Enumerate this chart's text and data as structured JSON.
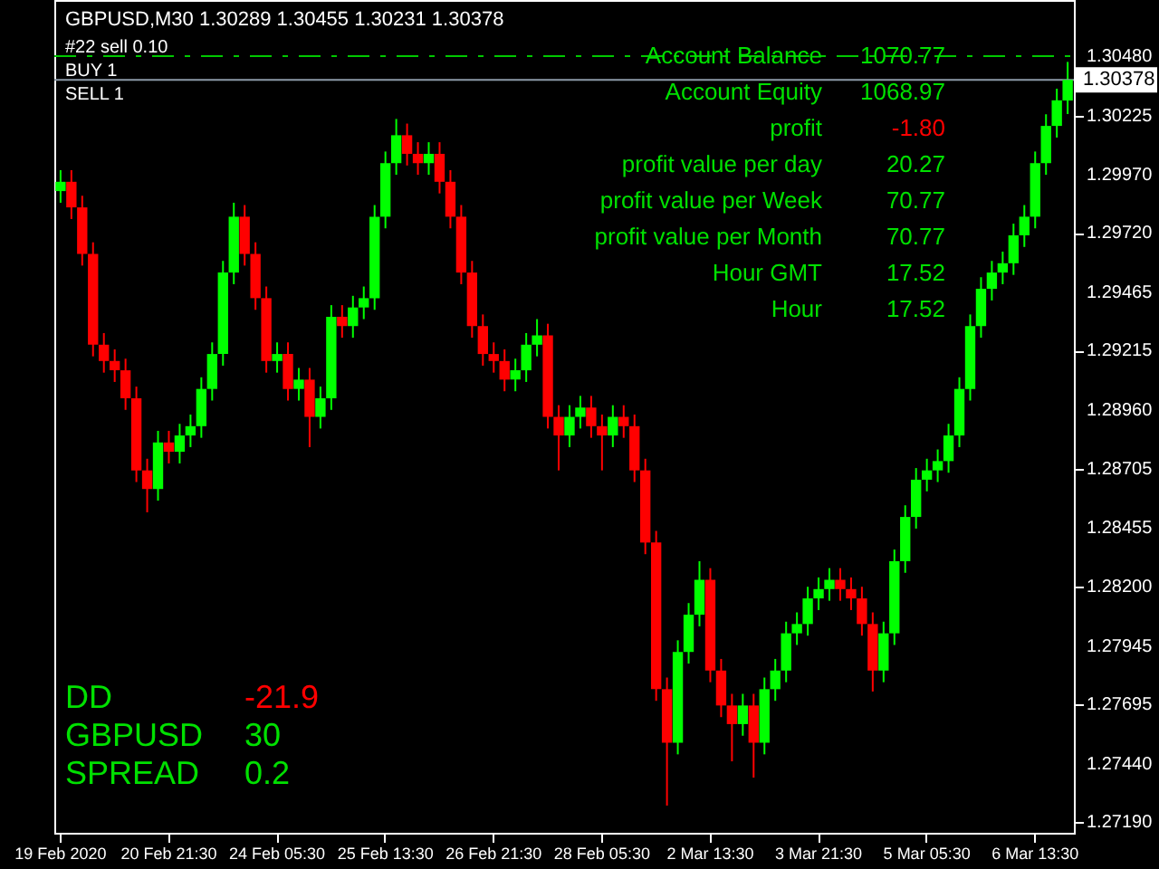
{
  "chart_data": {
    "type": "candlestick",
    "title": "GBPUSD,M30  1.30289 1.30455 1.30231 1.30378",
    "categories": [
      "19 Feb 2020",
      null,
      null,
      null,
      null,
      null,
      null,
      null,
      null,
      null,
      "20 Feb 21:30",
      null,
      null,
      null,
      null,
      null,
      null,
      null,
      null,
      null,
      "24 Feb 05:30",
      null,
      null,
      null,
      null,
      null,
      null,
      null,
      null,
      null,
      "25 Feb 13:30",
      null,
      null,
      null,
      null,
      null,
      null,
      null,
      null,
      null,
      "26 Feb 21:30",
      null,
      null,
      null,
      null,
      null,
      null,
      null,
      null,
      null,
      "28 Feb 05:30",
      null,
      null,
      null,
      null,
      null,
      null,
      null,
      null,
      null,
      "2 Mar 13:30",
      null,
      null,
      null,
      null,
      null,
      null,
      null,
      null,
      null,
      "3 Mar 21:30",
      null,
      null,
      null,
      null,
      null,
      null,
      null,
      null,
      null,
      "5 Mar 05:30",
      null,
      null,
      null,
      null,
      null,
      null,
      null,
      null,
      null,
      "6 Mar 13:30",
      null,
      null,
      null
    ],
    "ohlc": [
      [
        1.299,
        1.2999,
        1.2985,
        1.2994
      ],
      [
        1.2994,
        1.2999,
        1.2978,
        1.2983
      ],
      [
        1.2983,
        1.2988,
        1.2958,
        1.2963
      ],
      [
        1.2963,
        1.2968,
        1.2919,
        1.2924
      ],
      [
        1.2924,
        1.2929,
        1.2912,
        1.2917
      ],
      [
        1.2917,
        1.2922,
        1.2908,
        1.2913
      ],
      [
        1.2913,
        1.2918,
        1.2896,
        1.2901
      ],
      [
        1.2901,
        1.2906,
        1.2865,
        1.287
      ],
      [
        1.287,
        1.2875,
        1.2852,
        1.2862
      ],
      [
        1.2862,
        1.2887,
        1.2857,
        1.2882
      ],
      [
        1.2882,
        1.2887,
        1.2873,
        1.2878
      ],
      [
        1.2878,
        1.289,
        1.2873,
        1.2885
      ],
      [
        1.2885,
        1.2894,
        1.288,
        1.2889
      ],
      [
        1.2889,
        1.291,
        1.2884,
        1.2905
      ],
      [
        1.2905,
        1.2925,
        1.29,
        1.292
      ],
      [
        1.292,
        1.296,
        1.2915,
        1.2955
      ],
      [
        1.2955,
        1.2985,
        1.295,
        1.2979
      ],
      [
        1.2979,
        1.2984,
        1.2958,
        1.2963
      ],
      [
        1.2963,
        1.2968,
        1.2939,
        1.2944
      ],
      [
        1.2944,
        1.2949,
        1.2912,
        1.2917
      ],
      [
        1.2917,
        1.2925,
        1.2912,
        1.292
      ],
      [
        1.292,
        1.2925,
        1.29,
        1.2905
      ],
      [
        1.2905,
        1.2914,
        1.29,
        1.2909
      ],
      [
        1.2909,
        1.2914,
        1.288,
        1.2893
      ],
      [
        1.2893,
        1.2906,
        1.2888,
        1.2901
      ],
      [
        1.2901,
        1.2941,
        1.2896,
        1.2936
      ],
      [
        1.2936,
        1.2941,
        1.2927,
        1.2932
      ],
      [
        1.2932,
        1.2945,
        1.2927,
        1.294
      ],
      [
        1.294,
        1.2949,
        1.2935,
        1.2944
      ],
      [
        1.2944,
        1.2984,
        1.2939,
        1.2979
      ],
      [
        1.2979,
        1.3007,
        1.2974,
        1.3002
      ],
      [
        1.3002,
        1.3021,
        1.2997,
        1.3014
      ],
      [
        1.3014,
        1.3019,
        1.3001,
        1.3006
      ],
      [
        1.3006,
        1.3011,
        1.2997,
        1.3002
      ],
      [
        1.3002,
        1.3011,
        1.2997,
        1.3006
      ],
      [
        1.3006,
        1.3011,
        1.2989,
        1.2994
      ],
      [
        1.2994,
        1.2999,
        1.2974,
        1.2979
      ],
      [
        1.2979,
        1.2984,
        1.295,
        1.2955
      ],
      [
        1.2955,
        1.296,
        1.2927,
        1.2932
      ],
      [
        1.2932,
        1.2937,
        1.2915,
        1.292
      ],
      [
        1.292,
        1.2925,
        1.2912,
        1.2917
      ],
      [
        1.2917,
        1.2922,
        1.2904,
        1.2909
      ],
      [
        1.2909,
        1.2918,
        1.2904,
        1.2913
      ],
      [
        1.2913,
        1.2929,
        1.2908,
        1.2924
      ],
      [
        1.2924,
        1.2935,
        1.2919,
        1.2928
      ],
      [
        1.2928,
        1.2933,
        1.2888,
        1.2893
      ],
      [
        1.2893,
        1.2898,
        1.287,
        1.2885
      ],
      [
        1.2885,
        1.2898,
        1.288,
        1.2893
      ],
      [
        1.2893,
        1.2902,
        1.2888,
        1.2897
      ],
      [
        1.2897,
        1.2902,
        1.2884,
        1.2889
      ],
      [
        1.2889,
        1.2894,
        1.287,
        1.2885
      ],
      [
        1.2885,
        1.2898,
        1.288,
        1.2893
      ],
      [
        1.2893,
        1.2898,
        1.2884,
        1.2889
      ],
      [
        1.2889,
        1.2894,
        1.2865,
        1.287
      ],
      [
        1.287,
        1.2875,
        1.2834,
        1.2839
      ],
      [
        1.2839,
        1.2844,
        1.2771,
        1.2776
      ],
      [
        1.2776,
        1.2781,
        1.2726,
        1.2753
      ],
      [
        1.2753,
        1.2797,
        1.2748,
        1.2792
      ],
      [
        1.2792,
        1.2813,
        1.2787,
        1.2808
      ],
      [
        1.2808,
        1.2831,
        1.2803,
        1.2823
      ],
      [
        1.2823,
        1.2828,
        1.2779,
        1.2784
      ],
      [
        1.2784,
        1.2789,
        1.2764,
        1.2769
      ],
      [
        1.2769,
        1.2774,
        1.2745,
        1.2761
      ],
      [
        1.2761,
        1.2774,
        1.2756,
        1.2769
      ],
      [
        1.2769,
        1.2774,
        1.2738,
        1.2753
      ],
      [
        1.2753,
        1.2781,
        1.2748,
        1.2776
      ],
      [
        1.2776,
        1.2789,
        1.2771,
        1.2784
      ],
      [
        1.2784,
        1.2805,
        1.2779,
        1.28
      ],
      [
        1.28,
        1.2809,
        1.2795,
        1.2804
      ],
      [
        1.2804,
        1.282,
        1.2799,
        1.2815
      ],
      [
        1.2815,
        1.2824,
        1.281,
        1.2819
      ],
      [
        1.2819,
        1.2828,
        1.2814,
        1.2823
      ],
      [
        1.2823,
        1.2828,
        1.2814,
        1.2819
      ],
      [
        1.2819,
        1.2824,
        1.281,
        1.2815
      ],
      [
        1.2815,
        1.282,
        1.2799,
        1.2804
      ],
      [
        1.2804,
        1.2809,
        1.2775,
        1.2784
      ],
      [
        1.2784,
        1.2805,
        1.2779,
        1.28
      ],
      [
        1.28,
        1.2836,
        1.2795,
        1.2831
      ],
      [
        1.2831,
        1.2855,
        1.2826,
        1.285
      ],
      [
        1.285,
        1.2871,
        1.2845,
        1.2866
      ],
      [
        1.2866,
        1.2875,
        1.2861,
        1.287
      ],
      [
        1.287,
        1.2879,
        1.2865,
        1.2874
      ],
      [
        1.2874,
        1.289,
        1.2869,
        1.2885
      ],
      [
        1.2885,
        1.291,
        1.288,
        1.2905
      ],
      [
        1.2905,
        1.2937,
        1.29,
        1.2932
      ],
      [
        1.2932,
        1.2953,
        1.2927,
        1.2948
      ],
      [
        1.2948,
        1.296,
        1.2943,
        1.2955
      ],
      [
        1.2955,
        1.2964,
        1.295,
        1.2959
      ],
      [
        1.2959,
        1.2976,
        1.2954,
        1.2971
      ],
      [
        1.2971,
        1.2984,
        1.2966,
        1.2979
      ],
      [
        1.2979,
        1.3007,
        1.2974,
        1.3002
      ],
      [
        1.3002,
        1.3023,
        1.2997,
        1.3018
      ],
      [
        1.3018,
        1.3034,
        1.3013,
        1.3029
      ],
      [
        1.30289,
        1.30455,
        1.30231,
        1.30378
      ]
    ],
    "colors": [
      "#00ff00",
      "#ff0000",
      "#ff0000",
      "#ff0000",
      "#ff0000",
      "#ff0000",
      "#ff0000",
      "#ff0000",
      "#ff0000",
      "#00ff00",
      "#ff0000",
      "#00ff00",
      "#00ff00",
      "#00ff00",
      "#00ff00",
      "#00ff00",
      "#00ff00",
      "#ff0000",
      "#ff0000",
      "#ff0000",
      "#00ff00",
      "#ff0000",
      "#00ff00",
      "#ff0000",
      "#00ff00",
      "#00ff00",
      "#ff0000",
      "#00ff00",
      "#00ff00",
      "#00ff00",
      "#00ff00",
      "#00ff00",
      "#ff0000",
      "#ff0000",
      "#00ff00",
      "#ff0000",
      "#ff0000",
      "#ff0000",
      "#ff0000",
      "#ff0000",
      "#ff0000",
      "#ff0000",
      "#00ff00",
      "#00ff00",
      "#00ff00",
      "#ff0000",
      "#ff0000",
      "#00ff00",
      "#00ff00",
      "#ff0000",
      "#ff0000",
      "#00ff00",
      "#ff0000",
      "#ff0000",
      "#ff0000",
      "#ff0000",
      "#ff0000",
      "#00ff00",
      "#00ff00",
      "#00ff00",
      "#ff0000",
      "#ff0000",
      "#ff0000",
      "#00ff00",
      "#ff0000",
      "#00ff00",
      "#00ff00",
      "#00ff00",
      "#00ff00",
      "#00ff00",
      "#00ff00",
      "#00ff00",
      "#ff0000",
      "#ff0000",
      "#ff0000",
      "#ff0000",
      "#00ff00",
      "#00ff00",
      "#00ff00",
      "#00ff00",
      "#00ff00",
      "#00ff00",
      "#00ff00",
      "#00ff00",
      "#00ff00",
      "#00ff00",
      "#00ff00",
      "#00ff00",
      "#00ff00",
      "#00ff00",
      "#00ff00",
      "#00ff00",
      "#00ff00",
      "#00ff00"
    ],
    "ylim": [
      1.27143,
      1.30721
    ],
    "yticks": [
      {
        "value": 1.2719,
        "label": "1.27190"
      },
      {
        "value": 1.2744,
        "label": "1.27440"
      },
      1.27695,
      1.27945,
      {
        "value": 1.282,
        "label": "1.28200"
      },
      1.28455,
      1.28705,
      {
        "value": 1.2896,
        "label": "1.28960"
      },
      1.29215,
      1.29465,
      {
        "value": 1.2972,
        "label": "1.29720"
      },
      {
        "value": 1.2997,
        "label": "1.29970"
      },
      1.30225,
      {
        "value": 1.3048,
        "label": "1.30480"
      }
    ],
    "ref_lines": [
      {
        "axis": "y",
        "value": 1.3048,
        "color": "#00c800",
        "line_style": "dashed"
      },
      {
        "axis": "y",
        "value": 1.30378,
        "label": "1.30378",
        "color": "#8c9aa8",
        "line_style": "solid"
      }
    ],
    "annotations": [
      "#22 sell 0.10",
      "BUY  1",
      "SELL  1",
      "Account Balance",
      "1070.77",
      "Account Equity",
      "1068.97",
      "profit",
      "-1.80",
      "profit value per day",
      "20.27",
      "profit value per Week",
      "70.77",
      "profit value per Month",
      "70.77",
      "Hour GMT",
      "17.52",
      "Hour",
      "17.52",
      "DD",
      "-21.9",
      "GBPUSD",
      "30",
      "SPREAD",
      "0.2"
    ],
    "grid": false
  }
}
